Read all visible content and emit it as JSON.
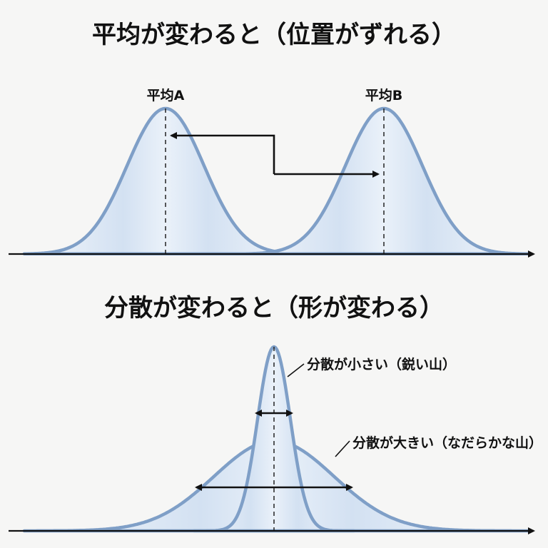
{
  "top_section": {
    "title": "平均が変わると（位置がずれる）",
    "label_a": "平均A",
    "label_b": "平均B"
  },
  "bottom_section": {
    "title": "分散が変わると（形が変わる）",
    "narrow_label": "分散が小さい（鋭い山）",
    "wide_label": "分散が大きい（なだらかな山）"
  },
  "colors": {
    "curve_stroke": "#7f9fc7",
    "curve_fill": "#d6e3f3",
    "background": "#f6f6f5"
  }
}
